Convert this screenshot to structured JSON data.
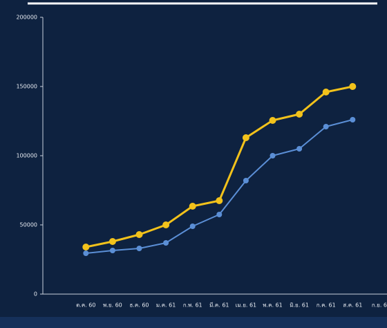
{
  "chart_data": {
    "type": "line",
    "categories": [
      "ต.ค. 60",
      "พ.ย. 60",
      "ธ.ค. 60",
      "ม.ค. 61",
      "ก.พ. 61",
      "มี.ค. 61",
      "เม.ย. 61",
      "พ.ค. 61",
      "มิ.ย. 61",
      "ก.ค. 61",
      "ส.ค. 61",
      "ก.ย. 6"
    ],
    "series": [
      {
        "color": "#f2c21b",
        "values": [
          34000,
          38000,
          43000,
          50000,
          63500,
          67500,
          113000,
          125500,
          130000,
          146000,
          150000,
          null
        ]
      },
      {
        "color": "#5b8fd6",
        "values": [
          29500,
          31500,
          33000,
          37000,
          49000,
          57500,
          82000,
          100000,
          105000,
          121000,
          126000,
          null
        ]
      }
    ],
    "ylim": [
      0,
      200000
    ],
    "yticks": [
      0,
      50000,
      100000,
      150000,
      200000
    ]
  }
}
